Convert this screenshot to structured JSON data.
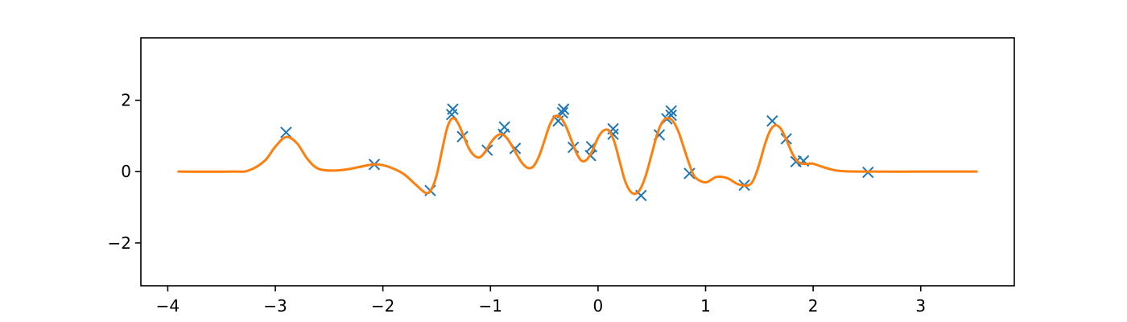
{
  "chart_data": {
    "type": "scatter",
    "title": "",
    "xlabel": "",
    "ylabel": "",
    "xlim": [
      -4.25,
      3.87
    ],
    "ylim": [
      -3.2,
      3.75
    ],
    "grid": false,
    "xticks": [
      {
        "value": -4,
        "label": "−4"
      },
      {
        "value": -3,
        "label": "−3"
      },
      {
        "value": -2,
        "label": "−2"
      },
      {
        "value": -1,
        "label": "−1"
      },
      {
        "value": 0,
        "label": "0"
      },
      {
        "value": 1,
        "label": "1"
      },
      {
        "value": 2,
        "label": "2"
      },
      {
        "value": 3,
        "label": "3"
      }
    ],
    "yticks": [
      {
        "value": -2,
        "label": "−2"
      },
      {
        "value": 0,
        "label": "0"
      },
      {
        "value": 2,
        "label": "2"
      }
    ],
    "series": [
      {
        "kind": "scatter",
        "marker": "x",
        "color": "#1f77b4",
        "points": [
          [
            -2.9,
            1.1
          ],
          [
            -2.08,
            0.2
          ],
          [
            -1.56,
            -0.53
          ],
          [
            -1.36,
            1.6
          ],
          [
            -1.35,
            1.75
          ],
          [
            -1.26,
            0.98
          ],
          [
            -1.03,
            0.6
          ],
          [
            -0.88,
            1.05
          ],
          [
            -0.87,
            1.25
          ],
          [
            -0.77,
            0.65
          ],
          [
            -0.37,
            1.42
          ],
          [
            -0.33,
            1.65
          ],
          [
            -0.32,
            1.75
          ],
          [
            -0.23,
            0.68
          ],
          [
            -0.07,
            0.45
          ],
          [
            -0.06,
            0.7
          ],
          [
            0.14,
            1.05
          ],
          [
            0.14,
            1.2
          ],
          [
            0.4,
            -0.67
          ],
          [
            0.57,
            1.03
          ],
          [
            0.64,
            1.48
          ],
          [
            0.68,
            1.58
          ],
          [
            0.68,
            1.7
          ],
          [
            0.85,
            -0.05
          ],
          [
            1.36,
            -0.38
          ],
          [
            1.62,
            1.42
          ],
          [
            1.75,
            0.92
          ],
          [
            1.84,
            0.28
          ],
          [
            1.91,
            0.3
          ],
          [
            2.51,
            -0.02
          ]
        ]
      },
      {
        "kind": "line",
        "color": "#ff7f0e",
        "x": [
          -3.9,
          -3.4,
          -3.25,
          -3.1,
          -3.0,
          -2.9,
          -2.8,
          -2.7,
          -2.6,
          -2.45,
          -2.3,
          -2.1,
          -2.0,
          -1.9,
          -1.8,
          -1.7,
          -1.6,
          -1.55,
          -1.5,
          -1.45,
          -1.4,
          -1.35,
          -1.3,
          -1.25,
          -1.2,
          -1.15,
          -1.1,
          -1.05,
          -1.0,
          -0.95,
          -0.9,
          -0.85,
          -0.8,
          -0.75,
          -0.7,
          -0.65,
          -0.6,
          -0.55,
          -0.5,
          -0.45,
          -0.4,
          -0.35,
          -0.3,
          -0.25,
          -0.2,
          -0.15,
          -0.1,
          -0.05,
          0.0,
          0.05,
          0.1,
          0.15,
          0.2,
          0.25,
          0.3,
          0.35,
          0.4,
          0.45,
          0.5,
          0.55,
          0.6,
          0.65,
          0.7,
          0.75,
          0.8,
          0.85,
          0.9,
          1.0,
          1.1,
          1.2,
          1.3,
          1.4,
          1.45,
          1.5,
          1.55,
          1.6,
          1.65,
          1.7,
          1.75,
          1.8,
          1.85,
          1.9,
          1.95,
          2.0,
          2.1,
          2.2,
          2.3,
          2.5,
          3.0,
          3.52
        ],
        "y": [
          0.0,
          0.0,
          0.03,
          0.3,
          0.7,
          0.97,
          0.8,
          0.35,
          0.08,
          0.03,
          0.08,
          0.2,
          0.18,
          0.08,
          -0.08,
          -0.35,
          -0.6,
          -0.5,
          -0.1,
          0.6,
          1.25,
          1.5,
          1.35,
          1.0,
          0.65,
          0.45,
          0.4,
          0.55,
          0.8,
          0.98,
          1.05,
          0.95,
          0.72,
          0.45,
          0.22,
          0.1,
          0.15,
          0.42,
          0.85,
          1.3,
          1.55,
          1.52,
          1.28,
          0.9,
          0.52,
          0.3,
          0.35,
          0.6,
          0.95,
          1.15,
          1.15,
          0.85,
          0.3,
          -0.25,
          -0.55,
          -0.62,
          -0.45,
          -0.05,
          0.5,
          1.05,
          1.4,
          1.5,
          1.4,
          1.1,
          0.65,
          0.2,
          -0.15,
          -0.3,
          -0.15,
          -0.18,
          -0.35,
          -0.38,
          -0.2,
          0.22,
          0.75,
          1.15,
          1.3,
          1.2,
          0.9,
          0.55,
          0.3,
          0.22,
          0.22,
          0.22,
          0.12,
          0.04,
          0.01,
          0.0,
          0.0,
          0.0
        ]
      }
    ]
  }
}
